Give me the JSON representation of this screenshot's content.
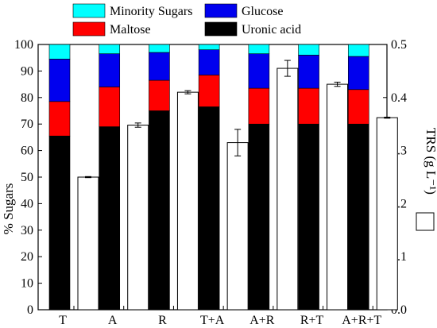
{
  "chart_data": {
    "type": "bar",
    "stacked": true,
    "categories": [
      "T",
      "A",
      "R",
      "T+A",
      "A+R",
      "R+T",
      "A+R+T"
    ],
    "series": [
      {
        "name": "Uronic acid",
        "color": "#000000",
        "values": [
          65.5,
          69,
          75,
          76.5,
          70,
          70,
          70
        ]
      },
      {
        "name": "Maltose",
        "color": "#ff0000",
        "values": [
          13,
          15,
          11.5,
          12,
          13.5,
          13.5,
          13
        ]
      },
      {
        "name": "Glucose",
        "color": "#0000ee",
        "values": [
          16,
          12.5,
          10.5,
          9.5,
          13,
          12.5,
          12.5
        ]
      },
      {
        "name": "Minority Sugars",
        "color": "#00ffff",
        "values": [
          5.5,
          3.5,
          3,
          2,
          3.5,
          4,
          4.5
        ]
      }
    ],
    "secondary_series": {
      "name": "TRS",
      "color": "#ffffff",
      "values": [
        0.25,
        0.348,
        0.41,
        0.315,
        0.455,
        0.425,
        0.362
      ],
      "errors": [
        0.001,
        0.004,
        0.003,
        0.025,
        0.015,
        0.004,
        0.001
      ]
    },
    "ylabel": "% Sugars",
    "ylim": [
      0,
      100
    ],
    "yticks": [
      0,
      10,
      20,
      30,
      40,
      50,
      60,
      70,
      80,
      90,
      100
    ],
    "y2label": "TRS (g L⁻¹)",
    "y2lim": [
      0,
      0.5
    ],
    "y2ticks": [
      "0.0",
      "0.1",
      "0.2",
      "0.3",
      "0.4",
      "0.5"
    ],
    "legend": {
      "placement": "top",
      "entries": [
        "Minority Sugars",
        "Glucose",
        "Maltose",
        "Uronic acid"
      ]
    }
  }
}
